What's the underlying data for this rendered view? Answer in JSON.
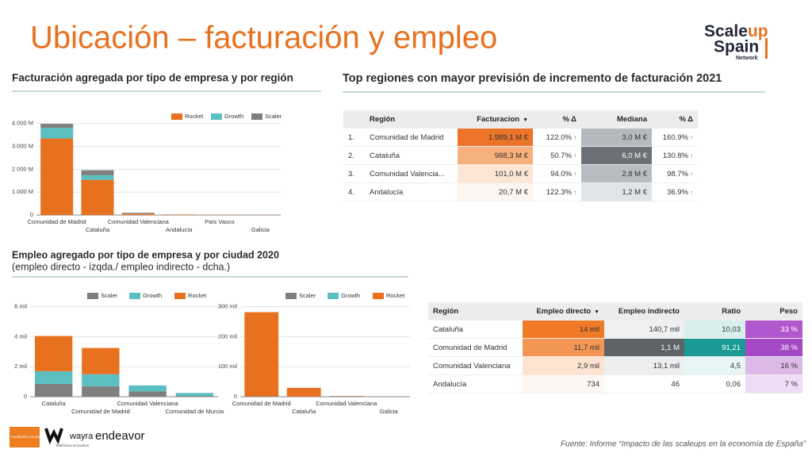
{
  "title": "Ubicación – facturación y empleo",
  "logo": {
    "part1": "Scale",
    "part2": "up",
    "line2": "Spain",
    "line3": "Network"
  },
  "revenue_section": {
    "title": "Facturación agregada por tipo de empresa y por región"
  },
  "top_regions_section": {
    "title": "Top regiones con mayor previsión de incremento de facturación 2021"
  },
  "employment_section": {
    "title": "Empleo agregado por tipo de empresa y por ciudad 2020",
    "subtitle": "(empleo directo - izqda./ empleo indirecto - dcha.)"
  },
  "chart_data": [
    {
      "type": "bar",
      "stacked": true,
      "grid": true,
      "categories": [
        "Comunidad de Madrid",
        "Cataluña",
        "Comunidad Valenciana",
        "Andalucía",
        "País Vasco",
        "Galicia"
      ],
      "series": [
        {
          "name": "Rocket",
          "color": "#e8711f",
          "values": [
            3350,
            1540,
            60,
            20,
            10,
            5
          ]
        },
        {
          "name": "Growth",
          "color": "#5bbfc2",
          "values": [
            470,
            200,
            10,
            0,
            0,
            0
          ]
        },
        {
          "name": "Scaler",
          "color": "#7f7f7f",
          "values": [
            170,
            220,
            30,
            5,
            0,
            0
          ]
        }
      ],
      "ylim": [
        0,
        4200
      ],
      "yticks": [
        0,
        {
          "value": 1000,
          "label": "1.000 M"
        },
        {
          "value": 2000,
          "label": "2.000 M"
        },
        {
          "value": 3000,
          "label": "3.000 M"
        },
        {
          "value": 4000,
          "label": "4.000 M"
        }
      ]
    },
    {
      "type": "bar",
      "stacked": true,
      "grid": true,
      "categories": [
        "Cataluña",
        "Comunidad de Madrid",
        "Comunidad Valenciana",
        "Comunidad de Murcia"
      ],
      "series": [
        {
          "name": "Scaler",
          "color": "#7f7f7f",
          "values": [
            0.85,
            0.7,
            0.35,
            0.05
          ]
        },
        {
          "name": "Growth",
          "color": "#5bbfc2",
          "values": [
            0.85,
            0.8,
            0.4,
            0.2
          ]
        },
        {
          "name": "Rocket",
          "color": "#e8711f",
          "values": [
            2.35,
            1.75,
            0,
            0
          ]
        }
      ],
      "ylim": [
        0,
        6.3
      ],
      "yticks": [
        0,
        {
          "value": 2,
          "label": "2 mil"
        },
        {
          "value": 4,
          "label": "4 mil"
        },
        {
          "value": 6,
          "label": "6 mil"
        }
      ]
    },
    {
      "type": "bar",
      "stacked": true,
      "grid": true,
      "categories": [
        "Comunidad de Madrid",
        "Cataluña",
        "Comunidad Valenciana",
        "Galicia"
      ],
      "series": [
        {
          "name": "Scaler",
          "color": "#7f7f7f",
          "values": [
            1,
            0.5,
            1,
            0
          ]
        },
        {
          "name": "Growth",
          "color": "#5bbfc2",
          "values": [
            0,
            0,
            0.5,
            0
          ]
        },
        {
          "name": "Rocket",
          "color": "#e8711f",
          "values": [
            281,
            29,
            1,
            0.3
          ]
        }
      ],
      "ylim": [
        0,
        315
      ],
      "yticks": [
        0,
        {
          "value": 100,
          "label": "100 mil"
        },
        {
          "value": 200,
          "label": "200 mil"
        },
        {
          "value": 300,
          "label": "300 mil"
        }
      ]
    }
  ],
  "top_regions_table": {
    "header": [
      "",
      "Región",
      "Facturacion",
      "% Δ",
      "Mediana",
      "% Δ"
    ],
    "sorted_column": 2,
    "trend_columns": [
      3,
      5
    ],
    "rows": [
      [
        "1.",
        "Comunidad de Madrid",
        "1.989,1 M €",
        "122.0%",
        "3,0 M €",
        "160.9%"
      ],
      [
        "2.",
        "Cataluña",
        "988,3 M €",
        "50.7%",
        "6,0 M €",
        "130.8%"
      ],
      [
        "3.",
        "Comunidad Valencia...",
        "101,0 M €",
        "94.0%",
        "2,8 M €",
        "98.7%"
      ],
      [
        "4.",
        "Andalucía",
        "20,7 M €",
        "122.3%",
        "1,2 M €",
        "36.9%"
      ]
    ],
    "cell_colors": [
      [
        null,
        null,
        "#ec7429",
        null,
        "#b5b9bd",
        null
      ],
      [
        null,
        null,
        "#f6b07c",
        null,
        "#6b7176",
        null
      ],
      [
        null,
        null,
        "#fde6d6",
        null,
        "#b9bdc1",
        null
      ],
      [
        null,
        null,
        "#fef5ee",
        null,
        "#e1e4e6",
        null
      ]
    ]
  },
  "employment_table": {
    "header": [
      "Región",
      "Empleo directo",
      "Empleo indirecto",
      "Ratio",
      "Peso"
    ],
    "sorted_column": 1,
    "rows": [
      [
        "Cataluña",
        "14 mil",
        "140,7 mil",
        "10,03",
        "33 %"
      ],
      [
        "Comunidad de Madrid",
        "11,7 mil",
        "1,1 M",
        "91,21",
        "38 %"
      ],
      [
        "Comunidad Valenciana",
        "2,9 mil",
        "13,1 mil",
        "4,5",
        "16 %"
      ],
      [
        "Andalucía",
        "734",
        "46",
        "0,06",
        "7 %"
      ]
    ],
    "cell_colors": [
      [
        null,
        "#ef7a28",
        "#eef0f1",
        "#d8efee",
        "#b258cf"
      ],
      [
        null,
        "#f39653",
        "#5d6367",
        "#1a9a94",
        "#a448c4"
      ],
      [
        null,
        "#fde3d0",
        "#eceeef",
        "#e7f5f4",
        "#dcb9e8"
      ],
      [
        null,
        "#fef6f0",
        null,
        null,
        "#eedcf4"
      ]
    ]
  },
  "footer": {
    "bankinter": "Fundación innovación bankinter",
    "wayra": "wayra",
    "telefonica": "Telefónica Innovation",
    "endeavor": "endeavor",
    "source": "Fuente: Informe “Impacto de las scaleups en la economía de España”"
  }
}
